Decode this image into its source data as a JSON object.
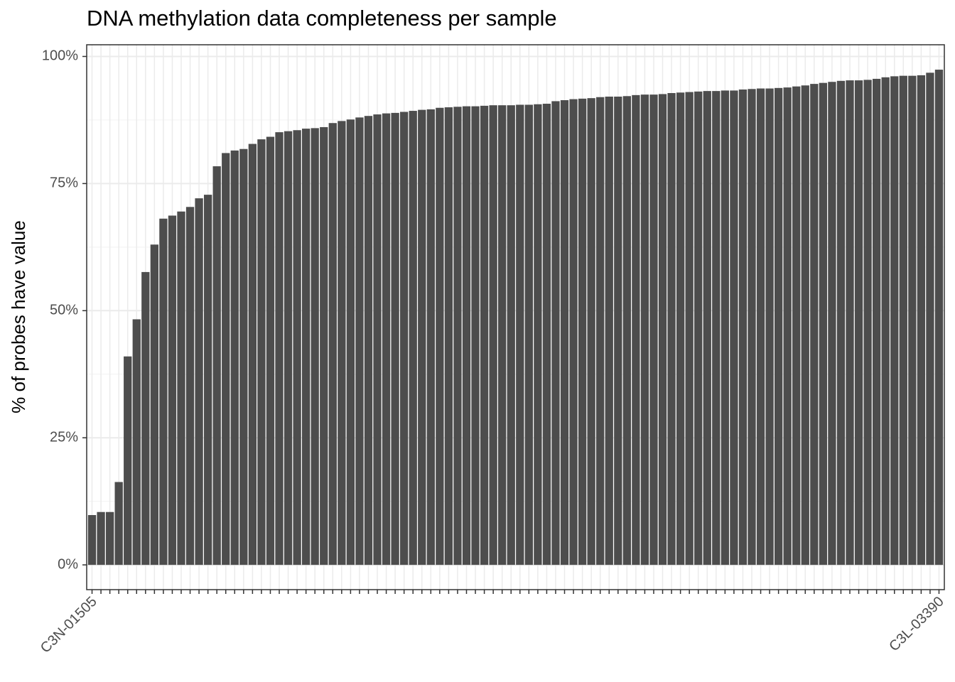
{
  "chart_data": {
    "type": "bar",
    "title": "DNA methylation data completeness per sample",
    "y_label": "% of probes have value",
    "categories": [
      "C3N-01505",
      null,
      null,
      null,
      null,
      null,
      null,
      null,
      null,
      null,
      null,
      null,
      null,
      null,
      null,
      null,
      null,
      null,
      null,
      null,
      null,
      null,
      null,
      null,
      null,
      null,
      null,
      null,
      null,
      null,
      null,
      null,
      null,
      null,
      null,
      null,
      null,
      null,
      null,
      null,
      null,
      null,
      null,
      null,
      null,
      null,
      null,
      null,
      null,
      null,
      null,
      null,
      null,
      null,
      null,
      null,
      null,
      null,
      null,
      null,
      null,
      null,
      null,
      null,
      null,
      null,
      null,
      null,
      null,
      null,
      null,
      null,
      null,
      null,
      null,
      null,
      null,
      null,
      null,
      null,
      null,
      null,
      null,
      null,
      null,
      null,
      null,
      null,
      null,
      null,
      null,
      null,
      null,
      null,
      null,
      "C3L-03390"
    ],
    "values": [
      9.8,
      10.4,
      10.4,
      16.3,
      41,
      48.3,
      57.6,
      63,
      68.1,
      68.7,
      69.5,
      70.4,
      72.1,
      72.8,
      78.4,
      81,
      81.5,
      81.8,
      82.8,
      83.7,
      84.2,
      85.1,
      85.3,
      85.5,
      85.8,
      85.9,
      86.1,
      86.9,
      87.3,
      87.6,
      88,
      88.3,
      88.6,
      88.8,
      88.9,
      89.1,
      89.3,
      89.5,
      89.6,
      89.9,
      90,
      90.1,
      90.2,
      90.2,
      90.3,
      90.4,
      90.4,
      90.4,
      90.5,
      90.5,
      90.6,
      90.7,
      91.2,
      91.4,
      91.6,
      91.7,
      91.8,
      92,
      92.1,
      92.1,
      92.2,
      92.4,
      92.5,
      92.5,
      92.6,
      92.8,
      92.9,
      93,
      93.1,
      93.2,
      93.2,
      93.3,
      93.3,
      93.5,
      93.6,
      93.7,
      93.7,
      93.8,
      93.9,
      94.1,
      94.3,
      94.6,
      94.8,
      95,
      95.2,
      95.3,
      95.3,
      95.4,
      95.6,
      95.9,
      96.1,
      96.2,
      96.2,
      96.3,
      96.8,
      97.4
    ],
    "color": "#4d4d4d",
    "ylim": [
      -4.87,
      102.3
    ],
    "yticks": [
      {
        "value": 0,
        "label": "0%"
      },
      {
        "value": 25,
        "label": "25%"
      },
      {
        "value": 50,
        "label": "50%"
      },
      {
        "value": 75,
        "label": "75%"
      },
      {
        "value": 100,
        "label": "100%"
      }
    ],
    "yminor": [
      12.5,
      37.5,
      62.5,
      87.5
    ],
    "grid": true
  }
}
